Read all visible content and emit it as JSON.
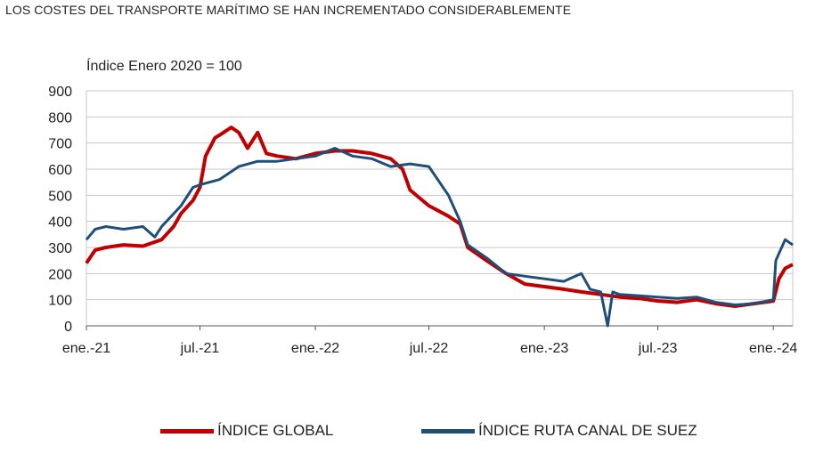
{
  "chart_data": {
    "type": "line",
    "title": "LOS COSTES DEL TRANSPORTE MARÍTIMO SE HAN INCREMENTADO CONSIDERABLEMENTE",
    "ylabel": "Índice Enero 2020 = 100",
    "ylim": [
      0,
      900
    ],
    "yticks": [
      0,
      100,
      200,
      300,
      400,
      500,
      600,
      700,
      800,
      900
    ],
    "xticks": [
      "ene.-21",
      "jul.-21",
      "ene.-22",
      "jul.-22",
      "ene.-23",
      "jul.-23",
      "ene.-24"
    ],
    "xlim": [
      "2021-01",
      "2024-02"
    ],
    "grid": true,
    "legend_position": "bottom",
    "series": [
      {
        "name": "ÍNDICE GLOBAL",
        "color": "#c00000",
        "points": [
          [
            "2021-01",
            240
          ],
          [
            "2021-01-15",
            290
          ],
          [
            "2021-02",
            300
          ],
          [
            "2021-03",
            310
          ],
          [
            "2021-04",
            305
          ],
          [
            "2021-05",
            330
          ],
          [
            "2021-05-20",
            380
          ],
          [
            "2021-06",
            430
          ],
          [
            "2021-06-20",
            480
          ],
          [
            "2021-07",
            530
          ],
          [
            "2021-07-10",
            650
          ],
          [
            "2021-07-25",
            720
          ],
          [
            "2021-08",
            730
          ],
          [
            "2021-08-20",
            760
          ],
          [
            "2021-09",
            740
          ],
          [
            "2021-09-15",
            680
          ],
          [
            "2021-10",
            740
          ],
          [
            "2021-10-15",
            660
          ],
          [
            "2021-11",
            650
          ],
          [
            "2021-12",
            640
          ],
          [
            "2022-01",
            660
          ],
          [
            "2022-02",
            670
          ],
          [
            "2022-03",
            670
          ],
          [
            "2022-04",
            660
          ],
          [
            "2022-05",
            640
          ],
          [
            "2022-05-20",
            600
          ],
          [
            "2022-06",
            520
          ],
          [
            "2022-07",
            460
          ],
          [
            "2022-08",
            420
          ],
          [
            "2022-08-20",
            390
          ],
          [
            "2022-09",
            300
          ],
          [
            "2022-10",
            250
          ],
          [
            "2022-11",
            200
          ],
          [
            "2022-12",
            160
          ],
          [
            "2023-01",
            150
          ],
          [
            "2023-02",
            140
          ],
          [
            "2023-03",
            130
          ],
          [
            "2023-04",
            120
          ],
          [
            "2023-05",
            110
          ],
          [
            "2023-06",
            105
          ],
          [
            "2023-07",
            95
          ],
          [
            "2023-08",
            90
          ],
          [
            "2023-09",
            100
          ],
          [
            "2023-10",
            85
          ],
          [
            "2023-11",
            75
          ],
          [
            "2023-12",
            85
          ],
          [
            "2024-01",
            95
          ],
          [
            "2024-01-10",
            180
          ],
          [
            "2024-01-20",
            220
          ],
          [
            "2024-02",
            235
          ]
        ]
      },
      {
        "name": "ÍNDICE RUTA CANAL DE SUEZ",
        "color": "#1f4e79",
        "points": [
          [
            "2021-01",
            330
          ],
          [
            "2021-01-15",
            370
          ],
          [
            "2021-02",
            380
          ],
          [
            "2021-03",
            370
          ],
          [
            "2021-04",
            380
          ],
          [
            "2021-04-20",
            340
          ],
          [
            "2021-05",
            380
          ],
          [
            "2021-06",
            460
          ],
          [
            "2021-06-20",
            530
          ],
          [
            "2021-07",
            540
          ],
          [
            "2021-08",
            560
          ],
          [
            "2021-09",
            610
          ],
          [
            "2021-10",
            630
          ],
          [
            "2021-11",
            630
          ],
          [
            "2021-12",
            640
          ],
          [
            "2022-01",
            650
          ],
          [
            "2022-02",
            680
          ],
          [
            "2022-03",
            650
          ],
          [
            "2022-04",
            640
          ],
          [
            "2022-05",
            610
          ],
          [
            "2022-06",
            620
          ],
          [
            "2022-07",
            610
          ],
          [
            "2022-08",
            500
          ],
          [
            "2022-08-20",
            400
          ],
          [
            "2022-09",
            310
          ],
          [
            "2022-10",
            260
          ],
          [
            "2022-11",
            200
          ],
          [
            "2022-12",
            190
          ],
          [
            "2023-01",
            180
          ],
          [
            "2023-02",
            170
          ],
          [
            "2023-03",
            200
          ],
          [
            "2023-03-15",
            140
          ],
          [
            "2023-04",
            130
          ],
          [
            "2023-04-12",
            0
          ],
          [
            "2023-04-20",
            130
          ],
          [
            "2023-05",
            120
          ],
          [
            "2023-06",
            115
          ],
          [
            "2023-07",
            110
          ],
          [
            "2023-08",
            105
          ],
          [
            "2023-09",
            110
          ],
          [
            "2023-10",
            90
          ],
          [
            "2023-11",
            80
          ],
          [
            "2023-12",
            85
          ],
          [
            "2024-01",
            100
          ],
          [
            "2024-01-05",
            250
          ],
          [
            "2024-01-20",
            330
          ],
          [
            "2024-02",
            310
          ]
        ]
      }
    ]
  }
}
